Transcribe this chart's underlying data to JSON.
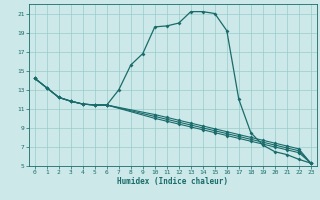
{
  "xlabel": "Humidex (Indice chaleur)",
  "bg_color": "#cce8e8",
  "grid_color": "#99cccc",
  "line_color": "#1a6b6b",
  "xlim": [
    -0.5,
    23.5
  ],
  "ylim": [
    5,
    22
  ],
  "xticks": [
    0,
    1,
    2,
    3,
    4,
    5,
    6,
    7,
    8,
    9,
    10,
    11,
    12,
    13,
    14,
    15,
    16,
    17,
    18,
    19,
    20,
    21,
    22,
    23
  ],
  "yticks": [
    5,
    7,
    9,
    11,
    13,
    15,
    17,
    19,
    21
  ],
  "line1_x": [
    0,
    1,
    2,
    3,
    4,
    5,
    6,
    7,
    8,
    9,
    10,
    11,
    12,
    13,
    14,
    15,
    16,
    17,
    18,
    19,
    20,
    21,
    22,
    23
  ],
  "line1_y": [
    14.2,
    13.2,
    12.2,
    11.8,
    11.5,
    11.4,
    11.4,
    13.0,
    15.6,
    16.8,
    19.6,
    19.7,
    20.0,
    21.2,
    21.2,
    21.0,
    19.2,
    12.0,
    8.5,
    7.2,
    6.5,
    6.2,
    5.7,
    5.3
  ],
  "line2_x": [
    0,
    1,
    2,
    3,
    4,
    5,
    6,
    10,
    11,
    12,
    13,
    14,
    15,
    16,
    17,
    18,
    19,
    20,
    21,
    22,
    23
  ],
  "line2_y": [
    14.2,
    13.2,
    12.2,
    11.8,
    11.5,
    11.4,
    11.4,
    10.4,
    10.1,
    9.8,
    9.5,
    9.2,
    8.9,
    8.6,
    8.3,
    8.0,
    7.7,
    7.4,
    7.1,
    6.8,
    5.3
  ],
  "line3_x": [
    0,
    1,
    2,
    3,
    4,
    5,
    6,
    10,
    11,
    12,
    13,
    14,
    15,
    16,
    17,
    18,
    19,
    20,
    21,
    22,
    23
  ],
  "line3_y": [
    14.2,
    13.2,
    12.2,
    11.8,
    11.5,
    11.4,
    11.4,
    10.2,
    9.9,
    9.6,
    9.3,
    9.0,
    8.7,
    8.4,
    8.1,
    7.8,
    7.5,
    7.2,
    6.9,
    6.6,
    5.3
  ],
  "line4_x": [
    0,
    1,
    2,
    3,
    4,
    5,
    6,
    10,
    11,
    12,
    13,
    14,
    15,
    16,
    17,
    18,
    19,
    20,
    21,
    22,
    23
  ],
  "line4_y": [
    14.2,
    13.2,
    12.2,
    11.8,
    11.5,
    11.4,
    11.4,
    10.0,
    9.7,
    9.4,
    9.1,
    8.8,
    8.5,
    8.2,
    7.9,
    7.6,
    7.3,
    7.0,
    6.7,
    6.4,
    5.3
  ]
}
